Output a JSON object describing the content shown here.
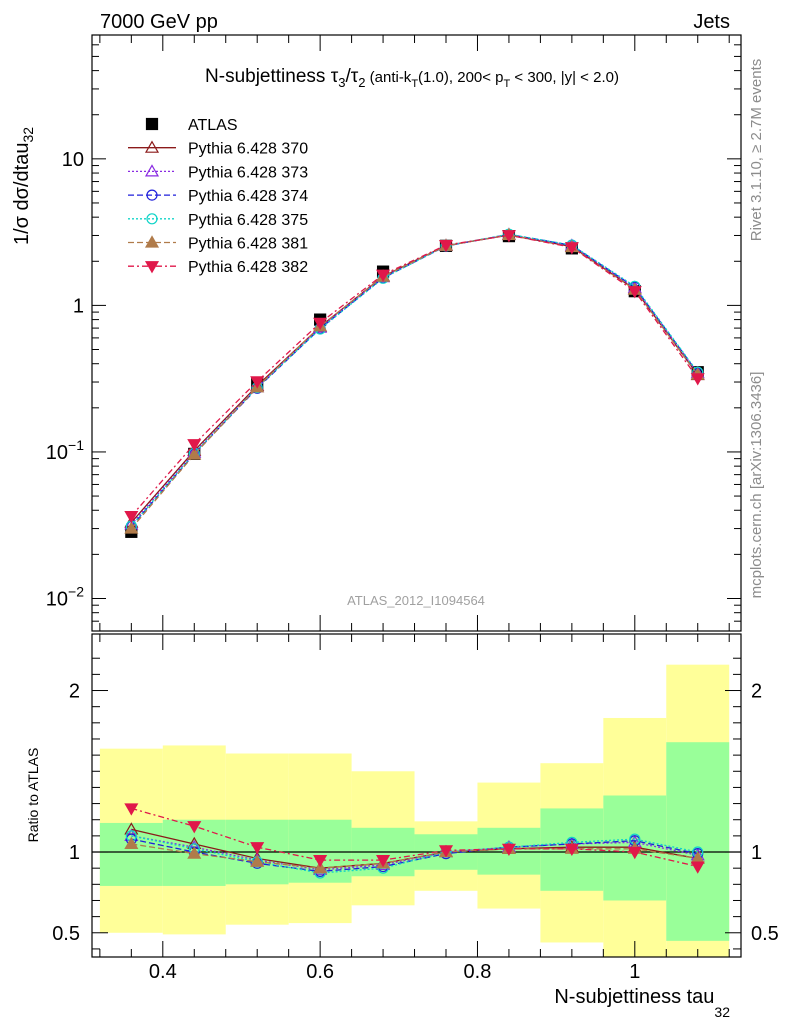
{
  "header": {
    "left": "7000 GeV pp",
    "right": "Jets"
  },
  "side_labels": {
    "rivet": "Rivet 3.1.10, ≥ 2.7M events",
    "mcplots": "mcplots.cern.ch [arXiv:1306.3436]"
  },
  "watermark": "ATLAS_2012_I1094564",
  "colors": {
    "band_inner": "#99ff99",
    "band_outer": "#ffff99",
    "ATLAS": "#000000",
    "s370": "#8b1a1a",
    "s373": "#8a2be2",
    "s374": "#1f1fdb",
    "s375": "#10d4c8",
    "s381": "#b07b4a",
    "s382": "#e0184a"
  },
  "chart_data": [
    {
      "type": "line",
      "panel": "main",
      "title": {
        "prefix": "N-subjettiness ",
        "tau3": "τ",
        "tau3_sub": "3",
        "slash": "/",
        "tau2": "τ",
        "tau2_sub": "2",
        "cut_a": " (anti-k",
        "cut_a_sub": "T",
        "cut_b": "(1.0), 200< p",
        "cut_b_sub": "T",
        "cut_c": " < 300, |y| < 2.0)"
      },
      "ylabel": {
        "main": "1/σ dσ/dtau",
        "sub": "32"
      },
      "yscale": "log",
      "ylim": [
        0.006,
        70
      ],
      "xlim": [
        0.31,
        1.135
      ],
      "yticks": [
        {
          "value": 10,
          "label": "10"
        },
        {
          "value": 1,
          "label": "1"
        },
        {
          "value": 0.1,
          "base": "10",
          "exp": "−1"
        },
        {
          "value": 0.01,
          "base": "10",
          "exp": "−2"
        }
      ],
      "legend_position": "top-left",
      "x": [
        0.36,
        0.44,
        0.52,
        0.6,
        0.68,
        0.76,
        0.84,
        0.92,
        1.0,
        1.08
      ],
      "series": [
        {
          "name": "ATLAS",
          "key": "ATLAS",
          "values": [
            0.0285,
            0.097,
            0.295,
            0.8,
            1.7,
            2.55,
            2.97,
            2.45,
            1.25,
            0.35
          ]
        },
        {
          "name": "Pythia 6.428 370",
          "key": "s370",
          "values": [
            0.033,
            0.102,
            0.283,
            0.715,
            1.58,
            2.56,
            3.02,
            2.52,
            1.29,
            0.335
          ]
        },
        {
          "name": "Pythia 6.428 373",
          "key": "s373",
          "values": [
            0.032,
            0.099,
            0.277,
            0.705,
            1.56,
            2.55,
            3.04,
            2.56,
            1.32,
            0.345
          ]
        },
        {
          "name": "Pythia 6.428 374",
          "key": "s374",
          "values": [
            0.031,
            0.097,
            0.272,
            0.695,
            1.54,
            2.54,
            3.05,
            2.57,
            1.33,
            0.346
          ]
        },
        {
          "name": "Pythia 6.428 375",
          "key": "s375",
          "values": [
            0.0312,
            0.098,
            0.275,
            0.69,
            1.53,
            2.55,
            3.06,
            2.58,
            1.35,
            0.35
          ]
        },
        {
          "name": "Pythia 6.428 381",
          "key": "s381",
          "values": [
            0.03,
            0.096,
            0.276,
            0.72,
            1.57,
            2.55,
            3.03,
            2.5,
            1.28,
            0.337
          ]
        },
        {
          "name": "Pythia 6.428 382",
          "key": "s382",
          "values": [
            0.0365,
            0.113,
            0.303,
            0.76,
            1.62,
            2.58,
            3.01,
            2.49,
            1.25,
            0.318
          ]
        }
      ]
    },
    {
      "type": "line",
      "panel": "ratio",
      "ylabel": "Ratio to ATLAS",
      "xlabel": {
        "main": "N-subjettiness tau",
        "sub": "32"
      },
      "ylim": [
        0.35,
        2.35
      ],
      "xlim": [
        0.31,
        1.135
      ],
      "xticks": [
        {
          "value": 0.4,
          "label": "0.4"
        },
        {
          "value": 0.6,
          "label": "0.6"
        },
        {
          "value": 0.8,
          "label": "0.8"
        },
        {
          "value": 1.0,
          "label": "1"
        }
      ],
      "yticks": [
        {
          "value": 2,
          "label": "2"
        },
        {
          "value": 1,
          "label": "1"
        },
        {
          "value": 0.5,
          "label": "0.5"
        }
      ],
      "bins": [
        {
          "lo": 0.32,
          "hi": 0.4,
          "inner": [
            0.79,
            1.18
          ],
          "outer": [
            0.5,
            1.64
          ]
        },
        {
          "lo": 0.4,
          "hi": 0.48,
          "inner": [
            0.79,
            1.2
          ],
          "outer": [
            0.49,
            1.66
          ]
        },
        {
          "lo": 0.48,
          "hi": 0.56,
          "inner": [
            0.8,
            1.2
          ],
          "outer": [
            0.55,
            1.61
          ]
        },
        {
          "lo": 0.56,
          "hi": 0.64,
          "inner": [
            0.81,
            1.2
          ],
          "outer": [
            0.56,
            1.61
          ]
        },
        {
          "lo": 0.64,
          "hi": 0.72,
          "inner": [
            0.85,
            1.15
          ],
          "outer": [
            0.67,
            1.5
          ]
        },
        {
          "lo": 0.72,
          "hi": 0.8,
          "inner": [
            0.89,
            1.11
          ],
          "outer": [
            0.76,
            1.19
          ]
        },
        {
          "lo": 0.8,
          "hi": 0.88,
          "inner": [
            0.86,
            1.15
          ],
          "outer": [
            0.65,
            1.43
          ]
        },
        {
          "lo": 0.88,
          "hi": 0.96,
          "inner": [
            0.76,
            1.27
          ],
          "outer": [
            0.44,
            1.55
          ]
        },
        {
          "lo": 0.96,
          "hi": 1.04,
          "inner": [
            0.7,
            1.35
          ],
          "outer": [
            0.33,
            1.83
          ]
        },
        {
          "lo": 1.04,
          "hi": 1.12,
          "inner": [
            0.45,
            1.68
          ],
          "outer": [
            0.33,
            2.16
          ]
        }
      ],
      "x": [
        0.36,
        0.44,
        0.52,
        0.6,
        0.68,
        0.76,
        0.84,
        0.92,
        1.0,
        1.08
      ],
      "series": [
        {
          "name": "Pythia 6.428 370",
          "key": "s370",
          "values": [
            1.14,
            1.05,
            0.96,
            0.9,
            0.93,
            1.0,
            1.02,
            1.03,
            1.03,
            0.96
          ]
        },
        {
          "name": "Pythia 6.428 373",
          "key": "s373",
          "values": [
            1.1,
            1.03,
            0.95,
            0.89,
            0.92,
            1.0,
            1.03,
            1.05,
            1.06,
            0.98
          ]
        },
        {
          "name": "Pythia 6.428 374",
          "key": "s374",
          "values": [
            1.08,
            1.0,
            0.93,
            0.88,
            0.91,
            0.99,
            1.03,
            1.05,
            1.07,
            0.99
          ]
        },
        {
          "name": "Pythia 6.428 375",
          "key": "s375",
          "values": [
            1.1,
            1.02,
            0.94,
            0.87,
            0.9,
            1.0,
            1.03,
            1.06,
            1.08,
            1.0
          ]
        },
        {
          "name": "Pythia 6.428 381",
          "key": "s381",
          "values": [
            1.05,
            0.99,
            0.94,
            0.9,
            0.93,
            1.0,
            1.02,
            1.02,
            1.02,
            0.96
          ]
        },
        {
          "name": "Pythia 6.428 382",
          "key": "s382",
          "values": [
            1.27,
            1.16,
            1.03,
            0.95,
            0.95,
            1.01,
            1.02,
            1.02,
            1.0,
            0.91
          ]
        }
      ]
    }
  ]
}
